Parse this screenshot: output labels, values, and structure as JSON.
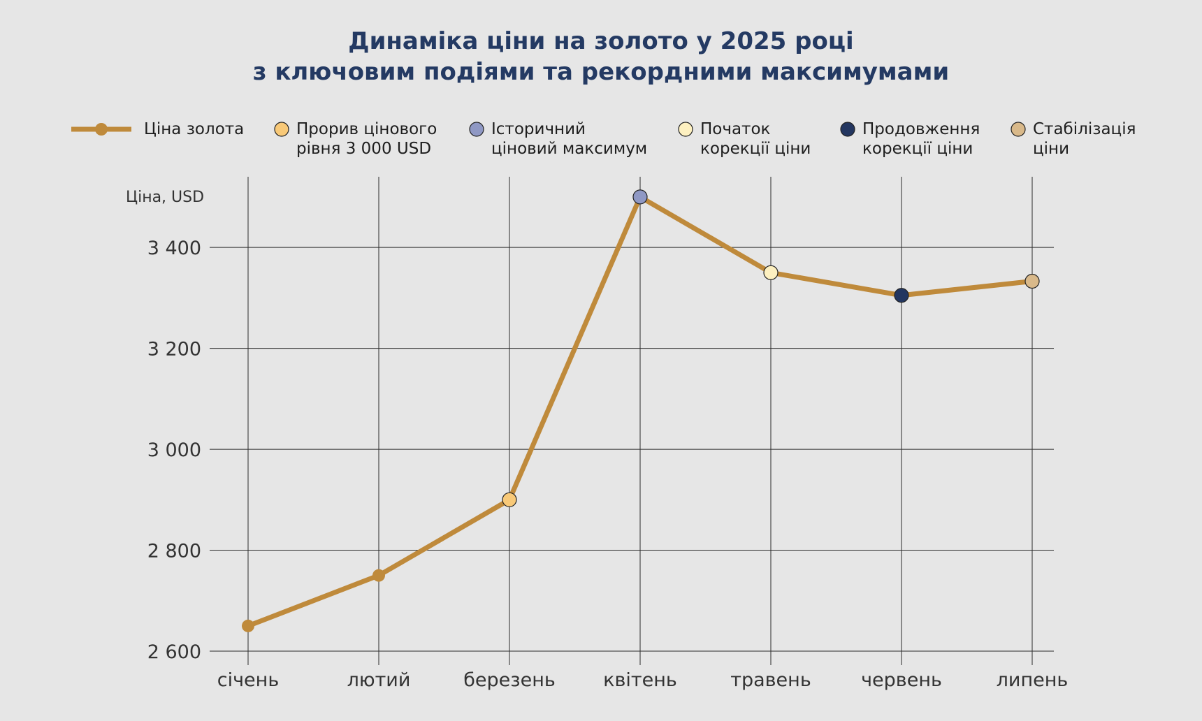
{
  "colors": {
    "background": "#e6e6e6",
    "title": "#243a63",
    "line": "#bf8a3b"
  },
  "chart_data": {
    "type": "line",
    "title_lines": [
      "Динаміка ціни на золото у 2025 році",
      "з ключовим подіями та рекордними максимумами"
    ],
    "ylabel": "Ціна, USD",
    "xlabel": "",
    "categories": [
      "січень",
      "лютий",
      "березень",
      "квітень",
      "травень",
      "червень",
      "липень"
    ],
    "ylim": [
      2600,
      3540
    ],
    "yticks": [
      2600,
      2800,
      3000,
      3200,
      3400
    ],
    "ytick_labels": [
      "2 600",
      "2 800",
      "3 000",
      "3 200",
      "3 400"
    ],
    "grid": true,
    "legend_position": "top",
    "series": [
      {
        "name": "Ціна золота",
        "color": "#bf8a3b",
        "values": [
          2650,
          2750,
          2900,
          3500,
          3350,
          3305,
          3333
        ]
      }
    ],
    "events": [
      {
        "index": 2,
        "color": "#f8c978",
        "label_lines": [
          "Прорив цінового",
          "рівня 3 000 USD"
        ]
      },
      {
        "index": 3,
        "color": "#8f98c4",
        "label_lines": [
          "Історичний",
          "ціновий максимум"
        ]
      },
      {
        "index": 4,
        "color": "#fdf0c0",
        "label_lines": [
          "Початок",
          "корекції ціни"
        ]
      },
      {
        "index": 5,
        "color": "#233660",
        "label_lines": [
          "Продовження",
          "корекції ціни"
        ]
      },
      {
        "index": 6,
        "color": "#d9b98a",
        "label_lines": [
          "Стабілізація",
          "ціни"
        ]
      }
    ]
  }
}
